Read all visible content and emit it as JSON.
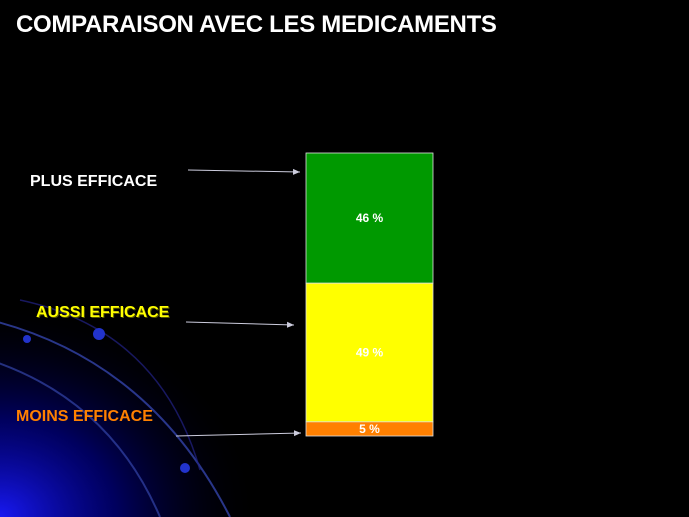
{
  "slide": {
    "title": "COMPARAISON AVEC LES MEDICAMENTS"
  },
  "chart_data": {
    "type": "bar",
    "stacked": true,
    "categories": [
      "PLUS EFFICACE",
      "AUSSI EFFICACE",
      "MOINS EFFICACE"
    ],
    "values": [
      46,
      49,
      5
    ],
    "value_labels": [
      "46 %",
      "49 %",
      "5 %"
    ],
    "unit": "%",
    "colors": [
      "#009900",
      "#ffff00",
      "#ff8000"
    ],
    "label_colors": [
      "#ffffff",
      "#ffff00",
      "#ff8000"
    ],
    "ylim": [
      0,
      100
    ],
    "grid": false,
    "legend": "left"
  }
}
